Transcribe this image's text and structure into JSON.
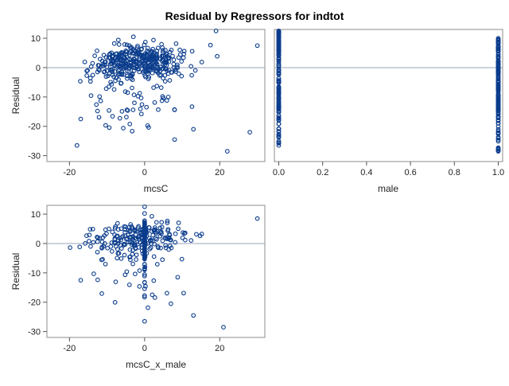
{
  "title": "Residual by Regressors for indtot",
  "colors": {
    "marker": "#0a3c8c",
    "refline": "#9aa6b8",
    "frame": "#8c8c8c"
  },
  "chart_data": [
    {
      "type": "scatter",
      "xlabel": "mcsC",
      "ylabel": "Residual",
      "xlim": [
        -26,
        32
      ],
      "ylim": [
        -32,
        13
      ],
      "xticks": [
        -20,
        0,
        20
      ],
      "yticks": [
        10,
        0,
        -10,
        -20,
        -30
      ],
      "refline_y": 0,
      "marker": "open-circle",
      "n_points_approx": 420,
      "points_sample": [
        [
          -18,
          -26.5
        ],
        [
          -17,
          -17.5
        ],
        [
          -3,
          10.5
        ],
        [
          19,
          12.5
        ],
        [
          22,
          -28.5
        ],
        [
          30,
          7.5
        ],
        [
          8,
          -24.5
        ],
        [
          13,
          -21
        ],
        [
          28,
          -22
        ]
      ]
    },
    {
      "type": "scatter",
      "xlabel": "male",
      "ylabel": "",
      "xlim": [
        -0.02,
        1.02
      ],
      "ylim": [
        -32,
        13
      ],
      "xticks": [
        0.0,
        0.2,
        0.4,
        0.6,
        0.8,
        1.0
      ],
      "yticks": [
        10,
        0,
        -10,
        -20,
        -30
      ],
      "refline_y": 0,
      "marker": "open-circle",
      "groups": [
        {
          "x": 0.0,
          "y_range": [
            -26.5,
            12.5
          ]
        },
        {
          "x": 1.0,
          "y_range": [
            -28.5,
            10
          ]
        }
      ]
    },
    {
      "type": "scatter",
      "xlabel": "mcsC_x_male",
      "ylabel": "Residual",
      "xlim": [
        -26,
        32
      ],
      "ylim": [
        -32,
        13
      ],
      "xticks": [
        -20,
        0,
        20
      ],
      "yticks": [
        10,
        0,
        -10,
        -20,
        -30
      ],
      "refline_y": 0,
      "marker": "open-circle",
      "n_points_approx": 420,
      "points_sample": [
        [
          0,
          12.5
        ],
        [
          0,
          -26.5
        ],
        [
          21,
          -28.5
        ],
        [
          13,
          -24.5
        ],
        [
          -17,
          -12.5
        ],
        [
          30,
          8.5
        ],
        [
          7,
          -20.5
        ]
      ]
    }
  ]
}
